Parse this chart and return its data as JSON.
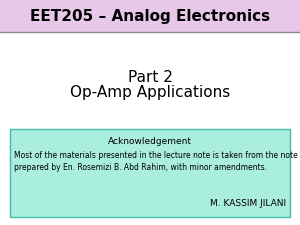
{
  "title": "EET205 – Analog Electronics",
  "title_bg": "#e8c8e8",
  "title_border": "#888888",
  "main_bg": "#ffffff",
  "body_line1": "Part 2",
  "body_line2": "Op-Amp Applications",
  "body_color": "#000000",
  "body_fontsize": 11,
  "ack_box_bg": "#aaeedd",
  "ack_box_edge": "#44bbaa",
  "ack_title": "Acknowledgement",
  "ack_body1": "Most of the materials presented in the lecture note is taken from the note",
  "ack_body2": "prepared by En. Rosemizi B. Abd Rahim, with minor amendments.",
  "ack_author": "M. KASSIM JILANI",
  "ack_title_fontsize": 6.5,
  "ack_body_fontsize": 5.5,
  "ack_author_fontsize": 6.5,
  "title_fontsize": 11
}
